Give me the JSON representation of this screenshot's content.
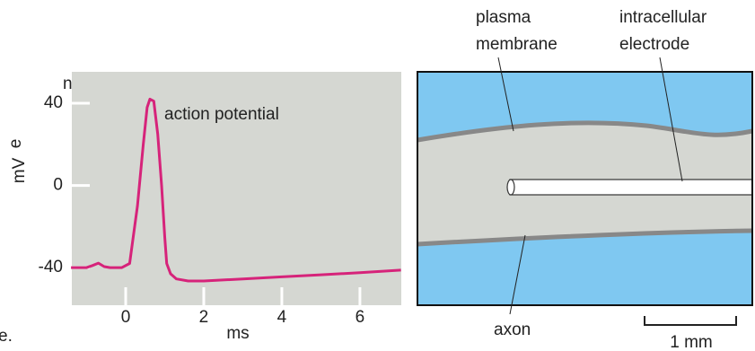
{
  "chart_data": {
    "type": "line",
    "y_label": "mV",
    "x_label": "ms",
    "annotation": "action potential",
    "x": [
      -1.4,
      -1.0,
      -0.85,
      -0.7,
      -0.55,
      -0.4,
      -0.1,
      0.1,
      0.3,
      0.45,
      0.55,
      0.62,
      0.72,
      0.82,
      0.92,
      1.0,
      1.05,
      1.15,
      1.3,
      1.6,
      2.0,
      3.0,
      4.0,
      5.0,
      6.0,
      7.05
    ],
    "series": [
      {
        "name": "action potential",
        "color": "#d6237a",
        "values": [
          -40,
          -40,
          -39,
          -37.8,
          -39.5,
          -40,
          -40,
          -38,
          -10,
          20,
          38,
          42,
          41,
          25,
          0,
          -25,
          -38,
          -43,
          -45.5,
          -46.5,
          -46.5,
          -45.5,
          -44.5,
          -43.5,
          -42.5,
          -41.2
        ]
      }
    ],
    "xlim": [
      -1.38,
      7.06
    ],
    "ylim": [
      -58.3,
      55.3
    ],
    "xticks": [
      0,
      2,
      4,
      6
    ],
    "yticks": [
      -40,
      0,
      40
    ]
  },
  "diagram": {
    "labels": {
      "plasma_membrane": [
        "plasma",
        "membrane"
      ],
      "electrode": [
        "intracellular",
        "electrode"
      ],
      "axon": "axon",
      "scale": "1 mm"
    }
  },
  "fragments": [
    "n",
    "e",
    "e."
  ]
}
